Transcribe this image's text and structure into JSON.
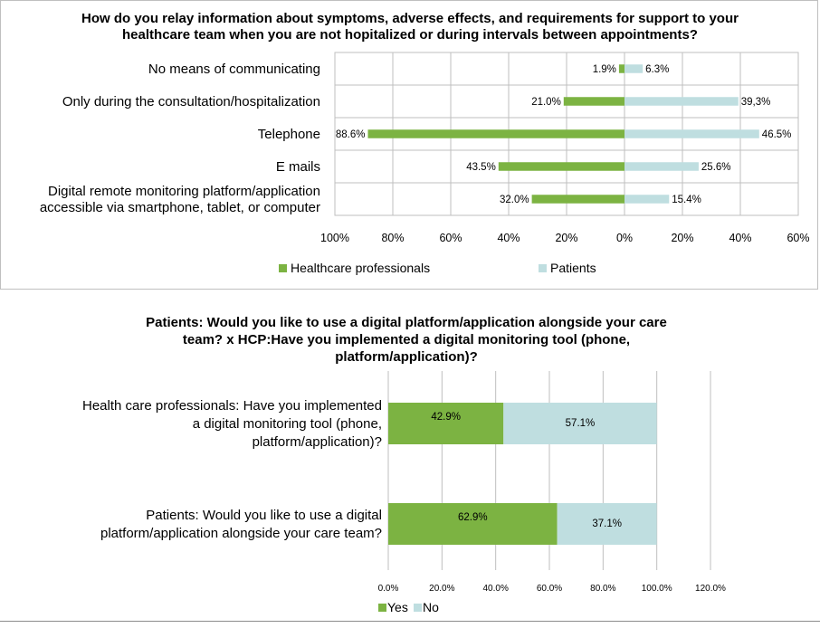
{
  "chart_data": [
    {
      "type": "bar",
      "orientation": "horizontal-diverging",
      "title_lines": [
        "How do you relay information about symptoms, adverse effects, and requirements for support to your",
        "healthcare team when you are not hopitalized or during intervals between appointments?"
      ],
      "categories": [
        [
          "No means of communicating"
        ],
        [
          "Only during the consultation/hospitalization"
        ],
        [
          "Telephone"
        ],
        [
          "E mails"
        ],
        [
          "Digital remote monitoring platform/application",
          "accessible via smartphone, tablet, or computer"
        ]
      ],
      "series": [
        {
          "name": "Healthcare professionals",
          "color": "#7cb342",
          "side": "left",
          "values": [
            1.9,
            21.0,
            88.6,
            43.5,
            32.0
          ],
          "labels": [
            "1.9%",
            "21.0%",
            "88.6%",
            "43.5%",
            "32.0%"
          ]
        },
        {
          "name": "Patients",
          "color": "#bfdee0",
          "side": "right",
          "values": [
            6.3,
            39.3,
            46.5,
            25.6,
            15.4
          ],
          "labels": [
            "6.3%",
            "39,3%",
            "46.5%",
            "25.6%",
            "15.4%"
          ]
        }
      ],
      "xlim": [
        -100,
        60
      ],
      "xticks": [
        -100,
        -80,
        -60,
        -40,
        -20,
        0,
        20,
        40,
        60
      ],
      "xtick_labels": [
        "100%",
        "80%",
        "60%",
        "40%",
        "20%",
        "0%",
        "20%",
        "40%",
        "60%"
      ],
      "grid": "vertical",
      "legend": "bottom"
    },
    {
      "type": "bar",
      "orientation": "horizontal-stacked",
      "title_lines": [
        "Patients: Would you like to use a digital platform/application alongside your care",
        "team? x HCP:Have you implemented a digital monitoring tool (phone,",
        "platform/application)?"
      ],
      "categories": [
        [
          "Health care professionals: Have you implemented",
          "a digital monitoring tool (phone,",
          "platform/application)?"
        ],
        [
          "Patients: Would you like to use a digital",
          "platform/application alongside your care team?"
        ]
      ],
      "series": [
        {
          "name": "Yes",
          "color": "#7cb342",
          "values": [
            42.9,
            62.9
          ],
          "labels": [
            "42.9%",
            "62.9%"
          ]
        },
        {
          "name": "No",
          "color": "#bfdee0",
          "values": [
            57.1,
            37.1
          ],
          "labels": [
            "57.1%",
            "37.1%"
          ]
        }
      ],
      "xlim": [
        0,
        120
      ],
      "xticks": [
        0,
        20,
        40,
        60,
        80,
        100,
        120
      ],
      "xtick_labels": [
        "0.0%",
        "20.0%",
        "40.0%",
        "60.0%",
        "80.0%",
        "100.0%",
        "120.0%"
      ],
      "grid": "vertical",
      "legend": "bottom"
    }
  ]
}
